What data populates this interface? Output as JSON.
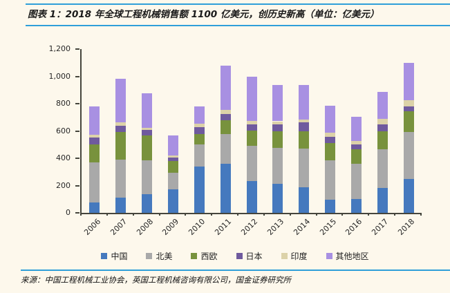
{
  "title": "图表 1：2018 年全球工程机械销售额 1100 亿美元，创历史新高（单位：亿美元）",
  "source": "来源：中国工程机械工业协会，英国工程机械咨询有限公司，国金证券研究所",
  "colors": {
    "background": "#FDF8EC",
    "rule_blue": "#2E9FD9",
    "axis": "#45453c"
  },
  "chart_data": {
    "type": "bar",
    "stacked": true,
    "title": "2018 年全球工程机械销售额 1100 亿美元，创历史新高",
    "unit": "亿美元",
    "categories": [
      "2006",
      "2007",
      "2008",
      "2009",
      "2010",
      "2011",
      "2012",
      "2013",
      "2014",
      "2015",
      "2016",
      "2017",
      "2018"
    ],
    "series": [
      {
        "name": "中国",
        "color": "#4579BE",
        "values": [
          75,
          113,
          137,
          174,
          338,
          360,
          233,
          211,
          186,
          96,
          100,
          183,
          250
        ]
      },
      {
        "name": "北美",
        "color": "#A9A9A9",
        "values": [
          295,
          279,
          247,
          118,
          161,
          215,
          260,
          267,
          284,
          289,
          260,
          285,
          340
        ]
      },
      {
        "name": "西欧",
        "color": "#78923D",
        "values": [
          130,
          199,
          182,
          88,
          79,
          105,
          110,
          122,
          130,
          127,
          105,
          128,
          152
        ]
      },
      {
        "name": "日本",
        "color": "#6F5A9E",
        "values": [
          50,
          48,
          43,
          26,
          51,
          42,
          47,
          48,
          64,
          46,
          37,
          51,
          39
        ]
      },
      {
        "name": "印度",
        "color": "#DCD2A8",
        "values": [
          20,
          24,
          12,
          13,
          22,
          35,
          25,
          23,
          21,
          28,
          27,
          43,
          42
        ]
      },
      {
        "name": "其他地区",
        "color": "#A890E2",
        "values": [
          210,
          317,
          255,
          146,
          128,
          320,
          325,
          264,
          254,
          200,
          173,
          194,
          277
        ]
      }
    ],
    "totals": [
      780,
      980,
      876,
      565,
      779,
      1077,
      1000,
      935,
      939,
      786,
      702,
      884,
      1100
    ],
    "ylim": [
      0,
      1200
    ],
    "ytick_step": 200,
    "ytick_labels": [
      "0",
      "200",
      "400",
      "600",
      "800",
      "1,000",
      "1,200"
    ],
    "xlabel": "",
    "ylabel": "",
    "grid": false,
    "legend_position": "bottom"
  }
}
